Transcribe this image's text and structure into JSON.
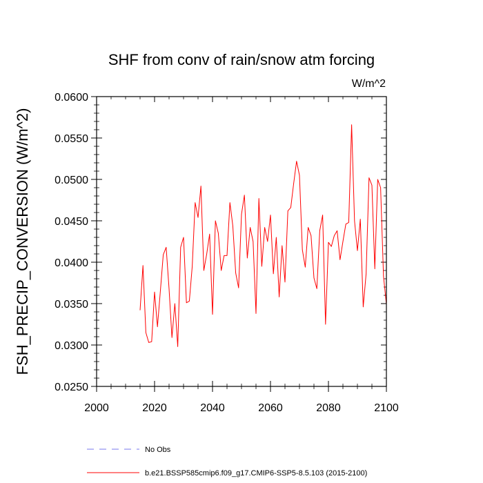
{
  "chart_data": {
    "type": "line",
    "title": "SHF from conv of rain/snow atm forcing",
    "units": "W/m^2",
    "xlabel": "",
    "ylabel": "FSH_PRECIP_CONVERSION  (W/m^2)",
    "xlim": [
      2000,
      2100
    ],
    "ylim": [
      0.025,
      0.06
    ],
    "xticks": [
      2000,
      2020,
      2040,
      2060,
      2080,
      2100
    ],
    "xtick_labels": [
      "2000",
      "2020",
      "2040",
      "2060",
      "2080",
      "2100"
    ],
    "yticks": [
      0.025,
      0.03,
      0.035,
      0.04,
      0.045,
      0.05,
      0.055,
      0.06
    ],
    "ytick_labels": [
      "0.0250",
      "0.0300",
      "0.0350",
      "0.0400",
      "0.0450",
      "0.0500",
      "0.0550",
      "0.0600"
    ],
    "series": [
      {
        "name": "No Obs",
        "style": "dashed",
        "color": "#7777ee",
        "x": [],
        "values": []
      },
      {
        "name": "b.e21.BSSP585cmip6.f09_g17.CMIP6-SSP5-8.5.103 (2015-2100)",
        "style": "solid",
        "color": "#ff0000",
        "x": [
          2015,
          2016,
          2017,
          2018,
          2019,
          2020,
          2021,
          2022,
          2023,
          2024,
          2025,
          2026,
          2027,
          2028,
          2029,
          2030,
          2031,
          2032,
          2033,
          2034,
          2035,
          2036,
          2037,
          2038,
          2039,
          2040,
          2041,
          2042,
          2043,
          2044,
          2045,
          2046,
          2047,
          2048,
          2049,
          2050,
          2051,
          2052,
          2053,
          2054,
          2055,
          2056,
          2057,
          2058,
          2059,
          2060,
          2061,
          2062,
          2063,
          2064,
          2065,
          2066,
          2067,
          2068,
          2069,
          2070,
          2071,
          2072,
          2073,
          2074,
          2075,
          2076,
          2077,
          2078,
          2079,
          2080,
          2081,
          2082,
          2083,
          2084,
          2085,
          2086,
          2087,
          2088,
          2089,
          2090,
          2091,
          2092,
          2093,
          2094,
          2095,
          2096,
          2097,
          2098,
          2099,
          2100
        ],
        "values": [
          0.0342,
          0.0396,
          0.0315,
          0.0303,
          0.0304,
          0.0364,
          0.0322,
          0.0365,
          0.0409,
          0.0418,
          0.0368,
          0.0309,
          0.035,
          0.0298,
          0.0418,
          0.043,
          0.0351,
          0.0353,
          0.0395,
          0.0472,
          0.0454,
          0.0492,
          0.039,
          0.041,
          0.0434,
          0.0337,
          0.045,
          0.0435,
          0.039,
          0.0408,
          0.0408,
          0.0472,
          0.0444,
          0.0387,
          0.0369,
          0.0458,
          0.0481,
          0.0405,
          0.0442,
          0.0425,
          0.0338,
          0.0477,
          0.0395,
          0.0442,
          0.0425,
          0.0457,
          0.0386,
          0.043,
          0.0358,
          0.042,
          0.0376,
          0.0462,
          0.0466,
          0.0495,
          0.0522,
          0.0505,
          0.0415,
          0.0394,
          0.0442,
          0.0432,
          0.0381,
          0.0368,
          0.0438,
          0.0457,
          0.0325,
          0.0424,
          0.0419,
          0.0432,
          0.0438,
          0.0403,
          0.0425,
          0.0446,
          0.0448,
          0.0566,
          0.045,
          0.0414,
          0.0452,
          0.0346,
          0.0386,
          0.0502,
          0.0493,
          0.0392,
          0.05,
          0.049,
          0.0383,
          0.0349
        ]
      }
    ],
    "legend_position": "bottom"
  }
}
